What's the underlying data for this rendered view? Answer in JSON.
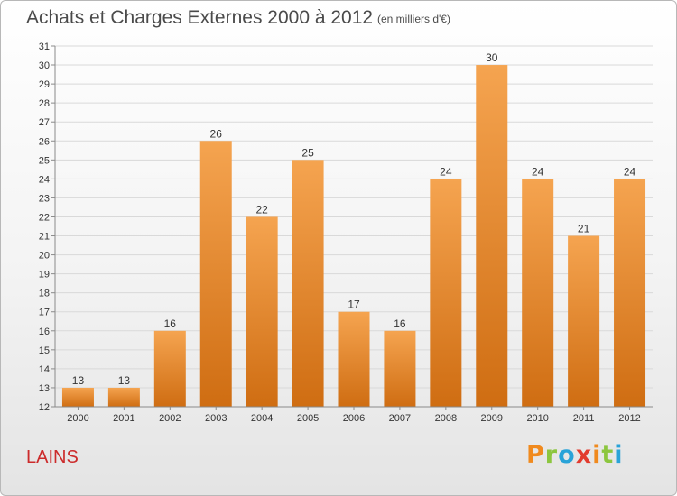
{
  "header": {
    "title": "Achats et Charges Externes 2000 à 2012",
    "subtitle": "(en milliers d'€)"
  },
  "footer": {
    "commune": "LAINS",
    "logo_letters": [
      "P",
      "r",
      "o",
      "x",
      "i",
      "t",
      "i"
    ],
    "logo_colors": [
      "#f08a1e",
      "#8cc63f",
      "#29a3d8",
      "#e23b2e",
      "#f08a1e",
      "#8cc63f",
      "#29a3d8"
    ]
  },
  "colors": {
    "bar_top": "#f5a450",
    "bar_bottom": "#cf6d12",
    "grid": "#d9d9d9",
    "axis": "#8a8a8a"
  },
  "chart_data": {
    "type": "bar",
    "title": "Achats et Charges Externes 2000 à 2012",
    "subtitle": "(en milliers d'€)",
    "categories": [
      "2000",
      "2001",
      "2002",
      "2003",
      "2004",
      "2005",
      "2006",
      "2007",
      "2008",
      "2009",
      "2010",
      "2011",
      "2012"
    ],
    "values": [
      13,
      13,
      16,
      26,
      22,
      25,
      17,
      16,
      24,
      30,
      24,
      21,
      24
    ],
    "ylim": [
      12,
      31
    ],
    "yticks": [
      12,
      13,
      14,
      15,
      16,
      17,
      18,
      19,
      20,
      21,
      22,
      23,
      24,
      25,
      26,
      27,
      28,
      29,
      30,
      31
    ],
    "grid": true,
    "data_labels": true,
    "xlabel": "",
    "ylabel": ""
  }
}
